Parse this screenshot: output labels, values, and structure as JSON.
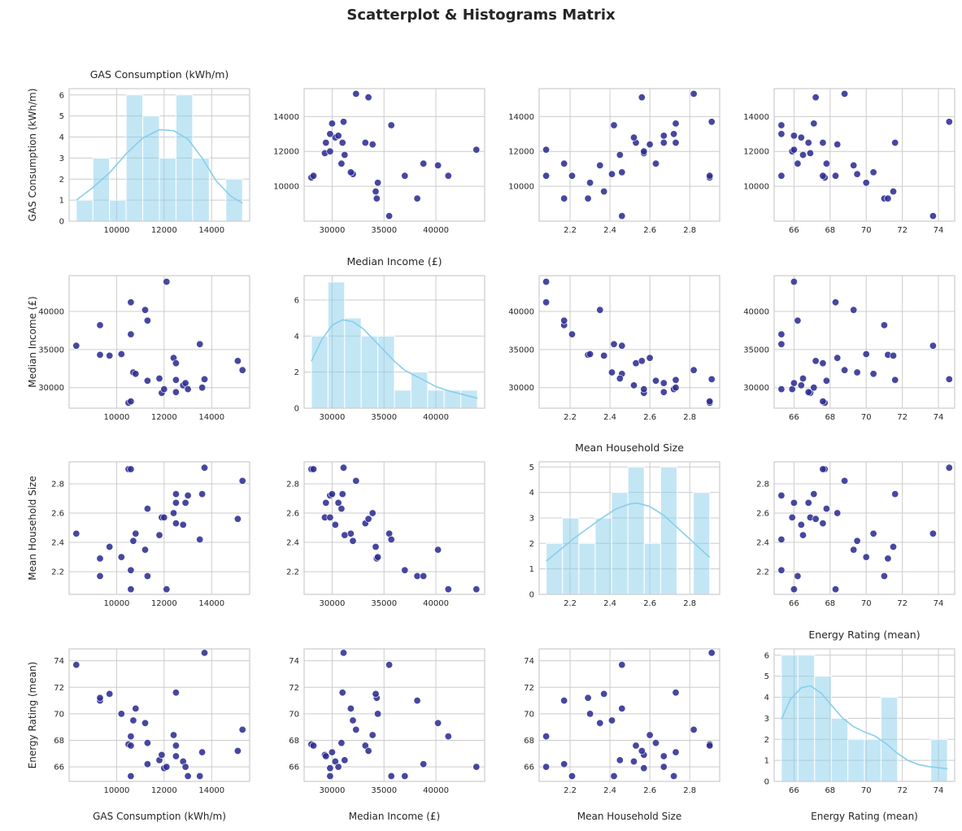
{
  "figure": {
    "title": "Scatterplot & Histograms Matrix"
  },
  "colors": {
    "scatter": "#2e2e93",
    "hist_fill": "#87ceeb",
    "kde": "#87ceeb"
  },
  "chart_data": {
    "type": "scatter",
    "variables": [
      {
        "name": "GAS Consumption (kWh/m)",
        "lim": [
          8000,
          15600
        ],
        "ticks": [
          10000,
          12000,
          14000
        ],
        "tick_labels": [
          "10000",
          "12000",
          "14000"
        ],
        "hist": {
          "edges": [
            8300,
            9000,
            9700,
            10400,
            11100,
            11800,
            12500,
            13200,
            13900,
            14600,
            15300
          ],
          "counts": [
            1,
            3,
            1,
            6,
            5,
            3,
            6,
            3,
            0,
            2
          ],
          "ylim": [
            0,
            6.3
          ],
          "yticks": [
            0,
            1,
            2,
            3,
            4,
            5,
            6
          ],
          "yticks_labels": [
            "0",
            "1",
            "2",
            "3",
            "4",
            "5",
            "6"
          ]
        },
        "kde": [
          [
            8300,
            1.0
          ],
          [
            9000,
            1.6
          ],
          [
            9700,
            2.3
          ],
          [
            10400,
            3.2
          ],
          [
            11100,
            3.95
          ],
          [
            11800,
            4.35
          ],
          [
            12400,
            4.3
          ],
          [
            13000,
            3.9
          ],
          [
            13600,
            3.0
          ],
          [
            14200,
            1.9
          ],
          [
            14800,
            1.2
          ],
          [
            15300,
            0.85
          ]
        ]
      },
      {
        "name": "Median Income (£)",
        "lim": [
          27300,
          44700
        ],
        "ticks": [
          30000,
          35000,
          40000
        ],
        "tick_labels": [
          "30000",
          "35000",
          "40000"
        ],
        "hist": {
          "edges": [
            28000,
            29600,
            31200,
            32800,
            34400,
            36000,
            37600,
            39200,
            40800,
            42400,
            44000
          ],
          "counts": [
            4,
            7,
            5,
            4,
            4,
            1,
            2,
            1,
            1,
            1
          ],
          "ylim": [
            0,
            7.35
          ],
          "yticks": [
            0,
            2,
            4,
            6
          ],
          "yticks_labels": [
            "0",
            "2",
            "4",
            "6"
          ]
        },
        "kde": [
          [
            28000,
            2.6
          ],
          [
            29000,
            3.8
          ],
          [
            30000,
            4.6
          ],
          [
            31000,
            4.9
          ],
          [
            32000,
            4.8
          ],
          [
            33000,
            4.4
          ],
          [
            34000,
            3.8
          ],
          [
            35000,
            3.2
          ],
          [
            36000,
            2.6
          ],
          [
            37000,
            2.1
          ],
          [
            38000,
            1.8
          ],
          [
            39000,
            1.5
          ],
          [
            40000,
            1.2
          ],
          [
            41000,
            1.0
          ],
          [
            42000,
            0.85
          ],
          [
            43000,
            0.7
          ],
          [
            44000,
            0.55
          ]
        ]
      },
      {
        "name": "Mean Household Size",
        "lim": [
          2.045,
          2.95
        ],
        "ticks": [
          2.2,
          2.4,
          2.6,
          2.8
        ],
        "tick_labels": [
          "2.2",
          "2.4",
          "2.6",
          "2.8"
        ],
        "hist": {
          "edges": [
            2.08,
            2.162,
            2.244,
            2.326,
            2.408,
            2.49,
            2.572,
            2.654,
            2.736,
            2.818,
            2.9
          ],
          "counts": [
            2,
            3,
            2,
            3,
            4,
            5,
            2,
            5,
            0,
            4
          ],
          "ylim": [
            0,
            5.2
          ],
          "yticks": [
            0,
            1,
            2,
            3,
            4,
            5
          ],
          "yticks_labels": [
            "0",
            "1",
            "2",
            "3",
            "4",
            "5"
          ]
        },
        "kde": [
          [
            2.08,
            1.3
          ],
          [
            2.15,
            1.75
          ],
          [
            2.22,
            2.2
          ],
          [
            2.29,
            2.6
          ],
          [
            2.36,
            3.0
          ],
          [
            2.43,
            3.35
          ],
          [
            2.5,
            3.55
          ],
          [
            2.54,
            3.58
          ],
          [
            2.6,
            3.45
          ],
          [
            2.67,
            3.1
          ],
          [
            2.74,
            2.6
          ],
          [
            2.81,
            2.1
          ],
          [
            2.9,
            1.45
          ]
        ]
      },
      {
        "name": "Energy Rating (mean)",
        "lim": [
          64.9,
          74.9
        ],
        "ticks": [
          66,
          68,
          70,
          72,
          74
        ],
        "tick_labels": [
          "66",
          "68",
          "70",
          "72",
          "74"
        ],
        "hist": {
          "edges": [
            65.3,
            66.22,
            67.14,
            68.06,
            68.98,
            69.9,
            70.82,
            71.74,
            72.66,
            73.58,
            74.5
          ],
          "counts": [
            6,
            6,
            5,
            3,
            2,
            2,
            4,
            0,
            0,
            2
          ],
          "ylim": [
            0,
            6.3
          ],
          "yticks": [
            0,
            1,
            2,
            3,
            4,
            5,
            6
          ],
          "yticks_labels": [
            "0",
            "1",
            "2",
            "3",
            "4",
            "5",
            "6"
          ]
        },
        "kde": [
          [
            65.3,
            2.95
          ],
          [
            65.8,
            3.9
          ],
          [
            66.4,
            4.45
          ],
          [
            66.9,
            4.55
          ],
          [
            67.5,
            4.2
          ],
          [
            68.1,
            3.6
          ],
          [
            68.7,
            3.0
          ],
          [
            69.3,
            2.6
          ],
          [
            69.9,
            2.35
          ],
          [
            70.5,
            2.15
          ],
          [
            71.1,
            1.8
          ],
          [
            71.7,
            1.35
          ],
          [
            72.3,
            1.0
          ],
          [
            72.9,
            0.8
          ],
          [
            73.5,
            0.7
          ],
          [
            74.5,
            0.6
          ]
        ]
      }
    ],
    "observations": [
      [
        8300,
        35500,
        2.46,
        73.7
      ],
      [
        9300,
        38200,
        2.17,
        71.0
      ],
      [
        9300,
        34300,
        2.29,
        71.2
      ],
      [
        9700,
        34200,
        2.37,
        71.5
      ],
      [
        10200,
        34400,
        2.3,
        70.0
      ],
      [
        10500,
        28000,
        2.9,
        67.7
      ],
      [
        10600,
        41200,
        2.08,
        68.3
      ],
      [
        10600,
        28200,
        2.9,
        67.6
      ],
      [
        10600,
        37000,
        2.21,
        65.3
      ],
      [
        10700,
        32000,
        2.41,
        69.5
      ],
      [
        10800,
        31800,
        2.46,
        70.4
      ],
      [
        11200,
        40200,
        2.35,
        69.3
      ],
      [
        11300,
        38800,
        2.17,
        66.2
      ],
      [
        11300,
        30900,
        2.63,
        67.8
      ],
      [
        11800,
        31200,
        2.45,
        66.5
      ],
      [
        11900,
        29300,
        2.57,
        66.9
      ],
      [
        12000,
        29800,
        2.57,
        65.9
      ],
      [
        12100,
        43900,
        2.08,
        66.0
      ],
      [
        12400,
        33900,
        2.6,
        68.4
      ],
      [
        12500,
        33200,
        2.53,
        67.6
      ],
      [
        12500,
        31000,
        2.73,
        71.6
      ],
      [
        12500,
        29400,
        2.67,
        66.8
      ],
      [
        12800,
        30300,
        2.52,
        66.4
      ],
      [
        12900,
        30600,
        2.67,
        66.0
      ],
      [
        13000,
        29800,
        2.72,
        65.3
      ],
      [
        13500,
        35700,
        2.42,
        65.3
      ],
      [
        13600,
        30000,
        2.73,
        67.1
      ],
      [
        13700,
        31100,
        2.91,
        74.6
      ],
      [
        15100,
        33500,
        2.56,
        67.2
      ],
      [
        15300,
        32300,
        2.82,
        68.8
      ]
    ]
  }
}
